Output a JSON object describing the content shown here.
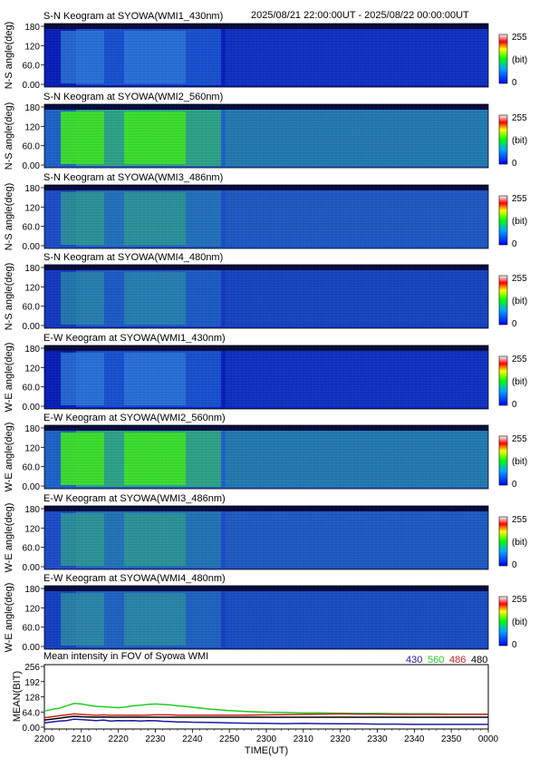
{
  "header": {
    "time_range": "2025/08/21 22:00:00UT - 2025/08/22 00:00:00UT"
  },
  "colorbar": {
    "max_label": "255",
    "unit_label": "(bit)",
    "min_label": "0"
  },
  "keograms": [
    {
      "title": "S-N Keogram at SYOWA(WMI1_430nm)",
      "ylabel": "N-S angle(deg)",
      "y_ticks": [
        "180",
        "120",
        "60.0",
        "0.00"
      ],
      "wavelength": "430",
      "base_color": "#0a1fb8",
      "feature_color": "#1a55d0",
      "peak_color": "#2f7ad8",
      "intensity": 0.55
    },
    {
      "title": "S-N Keogram at SYOWA(WMI2_560nm)",
      "ylabel": "N-S angle(deg)",
      "y_ticks": [
        "180",
        "120",
        "60.0",
        "0.00"
      ],
      "wavelength": "560",
      "base_color": "#1e62c8",
      "feature_color": "#2fa880",
      "peak_color": "#3de02a",
      "intensity": 1.0
    },
    {
      "title": "S-N Keogram at SYOWA(WMI3_486nm)",
      "ylabel": "N-S angle(deg)",
      "y_ticks": [
        "180",
        "120",
        "60.0",
        "0.00"
      ],
      "wavelength": "486",
      "base_color": "#1c4cc8",
      "feature_color": "#2474b8",
      "peak_color": "#2f9a90",
      "intensity": 0.6
    },
    {
      "title": "S-N Keogram at SYOWA(WMI4_480nm)",
      "ylabel": "N-S angle(deg)",
      "y_ticks": [
        "180",
        "120",
        "60.0",
        "0.00"
      ],
      "wavelength": "480",
      "base_color": "#1438c0",
      "feature_color": "#1d5fc4",
      "peak_color": "#2a8aa8",
      "intensity": 0.5
    },
    {
      "title": "E-W Keogram at SYOWA(WMI1_430nm)",
      "ylabel": "W-E angle(deg)",
      "y_ticks": [
        "180",
        "120",
        "60.0",
        "0.00"
      ],
      "wavelength": "430",
      "base_color": "#0a1fb8",
      "feature_color": "#1a55d0",
      "peak_color": "#2f7ad8",
      "intensity": 0.55
    },
    {
      "title": "E-W Keogram at SYOWA(WMI2_560nm)",
      "ylabel": "W-E angle(deg)",
      "y_ticks": [
        "180",
        "120",
        "60.0",
        "0.00"
      ],
      "wavelength": "560",
      "base_color": "#1e62c8",
      "feature_color": "#2fa880",
      "peak_color": "#3de02a",
      "intensity": 1.0
    },
    {
      "title": "E-W Keogram at SYOWA(WMI3_486nm)",
      "ylabel": "W-E angle(deg)",
      "y_ticks": [
        "180",
        "120",
        "60.0",
        "0.00"
      ],
      "wavelength": "486",
      "base_color": "#1c4cc8",
      "feature_color": "#2478b4",
      "peak_color": "#2f9a90",
      "intensity": 0.65
    },
    {
      "title": "E-W Keogram at SYOWA(WMI4_480nm)",
      "ylabel": "W-E angle(deg)",
      "y_ticks": [
        "180",
        "120",
        "60.0",
        "0.00"
      ],
      "wavelength": "480",
      "base_color": "#1640c2",
      "feature_color": "#2066c0",
      "peak_color": "#2e90a0",
      "intensity": 0.55
    }
  ],
  "chart_data": {
    "type": "line",
    "title": "Mean intensity in FOV of Syowa WMI",
    "xlabel": "TIME(UT)",
    "ylabel": "MEAN(BIT)",
    "ylim": [
      0,
      256
    ],
    "xlim": [
      0,
      120
    ],
    "x_tick_labels": [
      "2200",
      "2210",
      "2220",
      "2230",
      "2240",
      "2250",
      "2300",
      "2310",
      "2320",
      "2330",
      "2340",
      "2350",
      "0000"
    ],
    "y_tick_labels": [
      "256",
      "192",
      "128",
      "64.0",
      "0.00"
    ],
    "y_tick_values": [
      256,
      192,
      128,
      64,
      0
    ],
    "x": [
      0,
      2,
      4,
      6,
      8,
      10,
      12,
      14,
      16,
      18,
      20,
      22,
      24,
      26,
      28,
      30,
      32,
      34,
      36,
      38,
      40,
      45,
      50,
      55,
      60,
      65,
      70,
      75,
      80,
      85,
      90,
      95,
      100,
      105,
      110,
      115,
      120
    ],
    "series": [
      {
        "name": "430",
        "color": "#1a1aa0",
        "values": [
          18,
          22,
          26,
          28,
          34,
          32,
          30,
          28,
          30,
          26,
          28,
          27,
          28,
          26,
          28,
          27,
          25,
          24,
          22,
          22,
          21,
          20,
          18,
          17,
          16,
          15,
          16,
          15,
          14,
          14,
          13,
          13,
          12,
          12,
          12,
          12,
          12
        ]
      },
      {
        "name": "560",
        "color": "#22cc22",
        "values": [
          68,
          75,
          80,
          90,
          100,
          98,
          92,
          88,
          86,
          84,
          82,
          85,
          90,
          93,
          96,
          98,
          96,
          94,
          90,
          88,
          84,
          76,
          70,
          66,
          63,
          62,
          60,
          60,
          59,
          58,
          58,
          57,
          56,
          56,
          55,
          55,
          55
        ]
      },
      {
        "name": "486",
        "color": "#cc2222",
        "values": [
          40,
          44,
          48,
          52,
          56,
          54,
          52,
          50,
          52,
          50,
          51,
          50,
          51,
          50,
          51,
          52,
          52,
          52,
          51,
          51,
          51,
          51,
          51,
          51,
          52,
          53,
          54,
          55,
          56,
          55,
          55,
          54,
          54,
          54,
          54,
          54,
          54
        ]
      },
      {
        "name": "480",
        "color": "#000000",
        "values": [
          30,
          34,
          38,
          42,
          46,
          44,
          43,
          42,
          43,
          42,
          42,
          42,
          42,
          42,
          42,
          42,
          42,
          42,
          42,
          42,
          42,
          42,
          42,
          42,
          42,
          42,
          42,
          42,
          42,
          42,
          42,
          42,
          42,
          42,
          42,
          42,
          42
        ]
      }
    ]
  }
}
